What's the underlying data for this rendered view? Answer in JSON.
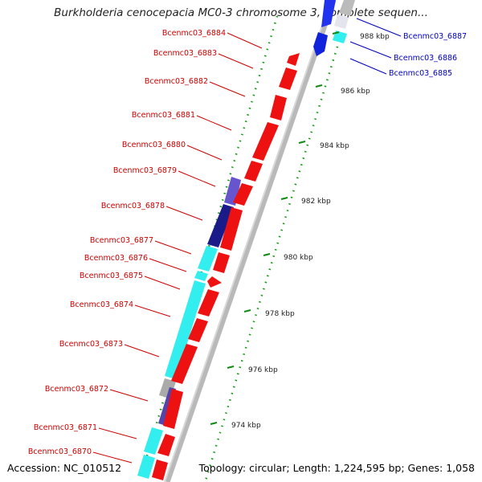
{
  "title": "Burkholderia cenocepacia MC0-3 chromosome 3, complete sequen...",
  "accession": "Accession: NC_010512",
  "topology": "Topology: circular; Length: 1,224,595 bp; Genes: 1,058",
  "colors": {
    "forward_gene": "#ee1111",
    "reverse_cyan": "#22eeee",
    "reverse_blue": "#1122ee",
    "label_red": "#cc0000",
    "label_blue": "#0000bb",
    "tick": "#118811"
  },
  "scale_ticks": [
    {
      "label": "974 kbp"
    },
    {
      "label": "976 kbp"
    },
    {
      "label": "978 kbp"
    },
    {
      "label": "980 kbp"
    },
    {
      "label": "982 kbp"
    },
    {
      "label": "984 kbp"
    },
    {
      "label": "986 kbp"
    },
    {
      "label": "988 kbp"
    }
  ],
  "genes": [
    {
      "id": "Bcenmc03_6884",
      "strand": "forward",
      "color": "red"
    },
    {
      "id": "Bcenmc03_6883",
      "strand": "forward",
      "color": "red"
    },
    {
      "id": "Bcenmc03_6882",
      "strand": "forward",
      "color": "red"
    },
    {
      "id": "Bcenmc03_6881",
      "strand": "forward",
      "color": "red"
    },
    {
      "id": "Bcenmc03_6880",
      "strand": "forward",
      "color": "red"
    },
    {
      "id": "Bcenmc03_6879",
      "strand": "reverse",
      "color": "slate-blue"
    },
    {
      "id": "Bcenmc03_6878",
      "strand": "reverse",
      "color": "navy"
    },
    {
      "id": "Bcenmc03_6877",
      "strand": "reverse",
      "color": "cyan"
    },
    {
      "id": "Bcenmc03_6876",
      "strand": "forward",
      "color": "red"
    },
    {
      "id": "Bcenmc03_6875",
      "strand": "forward",
      "color": "red"
    },
    {
      "id": "Bcenmc03_6874",
      "strand": "forward",
      "color": "red"
    },
    {
      "id": "Bcenmc03_6873",
      "strand": "reverse",
      "color": "cyan"
    },
    {
      "id": "Bcenmc03_6872",
      "strand": "reverse",
      "color": "slate-blue"
    },
    {
      "id": "Bcenmc03_6871",
      "strand": "reverse",
      "color": "cyan"
    },
    {
      "id": "Bcenmc03_6870",
      "strand": "forward",
      "color": "red"
    },
    {
      "id": "Bcenmc03_6887",
      "strand": "reverse",
      "color": "blue"
    },
    {
      "id": "Bcenmc03_6886",
      "strand": "reverse",
      "color": "cyan"
    },
    {
      "id": "Bcenmc03_6885",
      "strand": "reverse",
      "color": "blue"
    }
  ]
}
